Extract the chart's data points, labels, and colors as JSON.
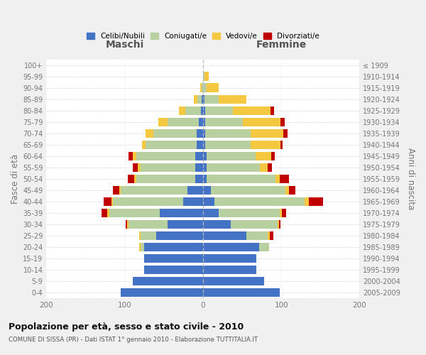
{
  "age_groups": [
    "0-4",
    "5-9",
    "10-14",
    "15-19",
    "20-24",
    "25-29",
    "30-34",
    "35-39",
    "40-44",
    "45-49",
    "50-54",
    "55-59",
    "60-64",
    "65-69",
    "70-74",
    "75-79",
    "80-84",
    "85-89",
    "90-94",
    "95-99",
    "100+"
  ],
  "birth_years": [
    "2005-2009",
    "2000-2004",
    "1995-1999",
    "1990-1994",
    "1985-1989",
    "1980-1984",
    "1975-1979",
    "1970-1974",
    "1965-1969",
    "1960-1964",
    "1955-1959",
    "1950-1954",
    "1945-1949",
    "1940-1944",
    "1935-1939",
    "1930-1934",
    "1925-1929",
    "1920-1924",
    "1915-1919",
    "1910-1914",
    "≤ 1909"
  ],
  "maschi": {
    "celibi": [
      105,
      90,
      75,
      75,
      75,
      60,
      45,
      55,
      25,
      20,
      10,
      10,
      10,
      8,
      8,
      5,
      3,
      2,
      0,
      0,
      0
    ],
    "coniugati": [
      0,
      0,
      0,
      0,
      5,
      20,
      50,
      65,
      90,
      85,
      75,
      70,
      75,
      65,
      55,
      40,
      20,
      5,
      2,
      0,
      0
    ],
    "vedovi": [
      0,
      0,
      0,
      0,
      2,
      2,
      2,
      2,
      2,
      2,
      3,
      3,
      5,
      5,
      10,
      12,
      8,
      5,
      2,
      0,
      0
    ],
    "divorziati": [
      0,
      0,
      0,
      0,
      0,
      0,
      2,
      8,
      10,
      8,
      8,
      7,
      5,
      0,
      0,
      0,
      0,
      0,
      0,
      0,
      0
    ]
  },
  "femmine": {
    "nubili": [
      98,
      78,
      68,
      68,
      72,
      55,
      35,
      20,
      15,
      10,
      5,
      5,
      5,
      3,
      3,
      3,
      3,
      2,
      0,
      0,
      0
    ],
    "coniugate": [
      0,
      0,
      0,
      0,
      12,
      28,
      60,
      78,
      115,
      95,
      88,
      68,
      62,
      58,
      58,
      48,
      35,
      18,
      5,
      2,
      0
    ],
    "vedove": [
      0,
      0,
      0,
      0,
      0,
      2,
      2,
      3,
      5,
      5,
      5,
      10,
      20,
      38,
      42,
      48,
      48,
      35,
      15,
      5,
      0
    ],
    "divorziate": [
      0,
      0,
      0,
      0,
      0,
      5,
      2,
      5,
      18,
      8,
      12,
      5,
      5,
      3,
      5,
      5,
      5,
      0,
      0,
      0,
      0
    ]
  },
  "colors": {
    "celibi": "#4472c4",
    "coniugati": "#b8cfa0",
    "vedovi": "#f5c842",
    "divorziati": "#c00000"
  },
  "title": "Popolazione per età, sesso e stato civile - 2010",
  "subtitle": "COMUNE DI SISSA (PR) - Dati ISTAT 1° gennaio 2010 - Elaborazione TUTTITALIA.IT",
  "xlabel_left": "Maschi",
  "xlabel_right": "Femmine",
  "ylabel_left": "Fasce di età",
  "ylabel_right": "Anni di nascita",
  "xlim": 200,
  "bg_color": "#f0f0f0",
  "plot_bg_color": "#ffffff",
  "legend_labels": [
    "Celibi/Nubili",
    "Coniugati/e",
    "Vedovi/e",
    "Divorziati/e"
  ]
}
